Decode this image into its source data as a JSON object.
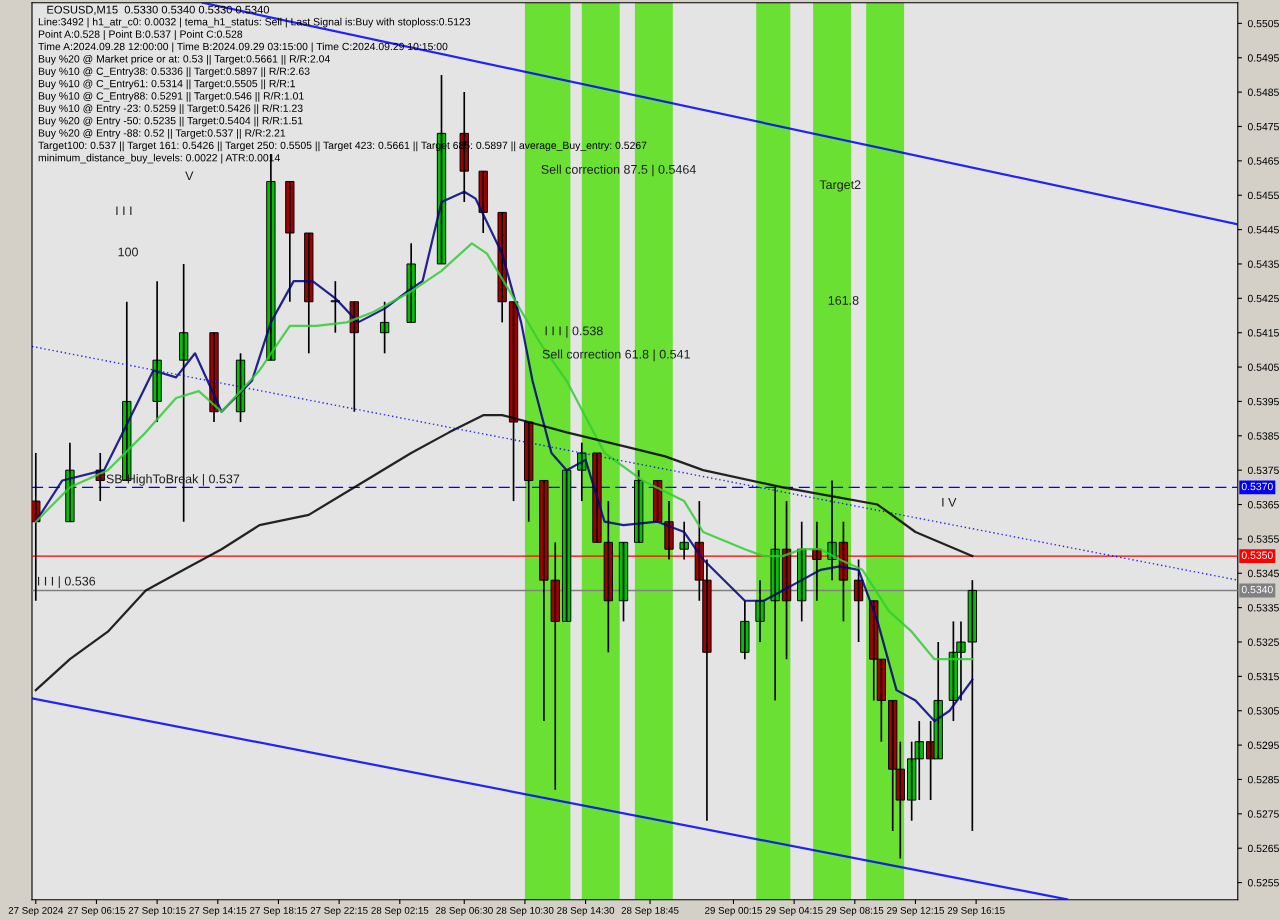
{
  "chart_data": {
    "type": "candlestick",
    "title": "EOSUSD,M15  0.5330 0.5340 0.5330 0.5340",
    "x": [
      "2024-09-27T02:15",
      "2024-09-27T04:30",
      "2024-09-27T06:30",
      "2024-09-27T08:15",
      "2024-09-27T10:15",
      "2024-09-27T12:00",
      "2024-09-27T14:00",
      "2024-09-27T15:45",
      "2024-09-27T17:45",
      "2024-09-27T19:00",
      "2024-09-27T20:15",
      "2024-09-27T22:00",
      "2024-09-27T23:15",
      "2024-09-28T01:15",
      "2024-09-28T03:00",
      "2024-09-28T05:00",
      "2024-09-28T06:30",
      "2024-09-28T07:45",
      "2024-09-28T09:00",
      "2024-09-28T09:45",
      "2024-09-28T10:45",
      "2024-09-28T11:45",
      "2024-09-28T12:30",
      "2024-09-28T13:15",
      "2024-09-28T14:15",
      "2024-09-28T15:15",
      "2024-09-28T16:00",
      "2024-09-28T17:00",
      "2024-09-28T18:00",
      "2024-09-28T19:15",
      "2024-09-28T20:00",
      "2024-09-28T21:00",
      "2024-09-28T22:00",
      "2024-09-28T22:30",
      "2024-09-29T01:00",
      "2024-09-29T02:00",
      "2024-09-29T03:00",
      "2024-09-29T03:45",
      "2024-09-29T04:45",
      "2024-09-29T05:45",
      "2024-09-29T06:45",
      "2024-09-29T07:30",
      "2024-09-29T08:30",
      "2024-09-29T09:30",
      "2024-09-29T10:00",
      "2024-09-29T10:45",
      "2024-09-29T11:15",
      "2024-09-29T12:00",
      "2024-09-29T12:30",
      "2024-09-29T13:15",
      "2024-09-29T13:45",
      "2024-09-29T14:45",
      "2024-09-29T15:15",
      "2024-09-29T16:00"
    ],
    "ohlc": [
      [
        0.5366,
        0.538,
        0.5337,
        0.536
      ],
      [
        0.536,
        0.5383,
        0.536,
        0.5375
      ],
      [
        0.5375,
        0.538,
        0.5366,
        0.5372
      ],
      [
        0.5372,
        0.5424,
        0.5372,
        0.5395
      ],
      [
        0.5395,
        0.543,
        0.5389,
        0.5407
      ],
      [
        0.5407,
        0.5435,
        0.536,
        0.5415
      ],
      [
        0.5415,
        0.5415,
        0.5389,
        0.5392
      ],
      [
        0.5392,
        0.5409,
        0.5389,
        0.5407
      ],
      [
        0.5407,
        0.5467,
        0.5407,
        0.5459
      ],
      [
        0.5459,
        0.5459,
        0.5424,
        0.5444
      ],
      [
        0.5444,
        0.5444,
        0.5409,
        0.5424
      ],
      [
        0.5424,
        0.543,
        0.5415,
        0.5424
      ],
      [
        0.5424,
        0.5424,
        0.5392,
        0.5415
      ],
      [
        0.5415,
        0.5424,
        0.5409,
        0.5418
      ],
      [
        0.5418,
        0.5441,
        0.5418,
        0.5435
      ],
      [
        0.5435,
        0.549,
        0.5435,
        0.5473
      ],
      [
        0.5473,
        0.5485,
        0.5453,
        0.5462
      ],
      [
        0.5462,
        0.5462,
        0.5444,
        0.545
      ],
      [
        0.545,
        0.545,
        0.5418,
        0.5424
      ],
      [
        0.5424,
        0.5424,
        0.5366,
        0.5389
      ],
      [
        0.5389,
        0.5389,
        0.536,
        0.5372
      ],
      [
        0.5372,
        0.5372,
        0.5302,
        0.5343
      ],
      [
        0.5343,
        0.5354,
        0.5282,
        0.5331
      ],
      [
        0.5331,
        0.5375,
        0.5331,
        0.5375
      ],
      [
        0.5375,
        0.5383,
        0.5366,
        0.538
      ],
      [
        0.538,
        0.538,
        0.5354,
        0.5354
      ],
      [
        0.5354,
        0.5366,
        0.5322,
        0.5337
      ],
      [
        0.5337,
        0.5354,
        0.5331,
        0.5354
      ],
      [
        0.5354,
        0.5375,
        0.5354,
        0.5372
      ],
      [
        0.5372,
        0.5372,
        0.536,
        0.536
      ],
      [
        0.536,
        0.5366,
        0.5349,
        0.5352
      ],
      [
        0.5352,
        0.536,
        0.5349,
        0.5354
      ],
      [
        0.5354,
        0.5366,
        0.5337,
        0.5343
      ],
      [
        0.5343,
        0.5349,
        0.5273,
        0.5322
      ],
      [
        0.5322,
        0.5337,
        0.532,
        0.5331
      ],
      [
        0.5331,
        0.5343,
        0.5325,
        0.5337
      ],
      [
        0.5337,
        0.537,
        0.5308,
        0.5352
      ],
      [
        0.5352,
        0.5366,
        0.532,
        0.5337
      ],
      [
        0.5337,
        0.536,
        0.5331,
        0.5352
      ],
      [
        0.5352,
        0.536,
        0.5337,
        0.5349
      ],
      [
        0.5349,
        0.5372,
        0.5343,
        0.5354
      ],
      [
        0.5354,
        0.536,
        0.5331,
        0.5343
      ],
      [
        0.5343,
        0.5349,
        0.5325,
        0.5337
      ],
      [
        0.5337,
        0.5337,
        0.5308,
        0.532
      ],
      [
        0.532,
        0.532,
        0.5296,
        0.5308
      ],
      [
        0.5308,
        0.5308,
        0.527,
        0.5288
      ],
      [
        0.5288,
        0.5296,
        0.5262,
        0.5279
      ],
      [
        0.5279,
        0.5296,
        0.5273,
        0.5291
      ],
      [
        0.5291,
        0.5302,
        0.5279,
        0.5296
      ],
      [
        0.5296,
        0.5302,
        0.5279,
        0.5291
      ],
      [
        0.5291,
        0.5325,
        0.5291,
        0.5308
      ],
      [
        0.5308,
        0.5331,
        0.5302,
        0.5322
      ],
      [
        0.5322,
        0.5331,
        0.5308,
        0.5325
      ],
      [
        0.5325,
        0.5343,
        0.527,
        0.534
      ]
    ],
    "series": [
      {
        "type": "line",
        "color": "#000080",
        "line_style": "solid",
        "x": [
          "2024-09-27T02:15",
          "2024-09-27T04:00",
          "2024-09-27T06:45",
          "2024-09-27T09:00",
          "2024-09-27T10:00",
          "2024-09-27T11:30",
          "2024-09-27T12:45",
          "2024-09-27T14:30",
          "2024-09-27T16:30",
          "2024-09-27T17:45",
          "2024-09-27T19:15",
          "2024-09-27T20:30",
          "2024-09-27T22:00",
          "2024-09-27T23:30",
          "2024-09-28T01:15",
          "2024-09-28T02:45",
          "2024-09-28T03:45",
          "2024-09-28T05:00",
          "2024-09-28T06:30",
          "2024-09-28T07:15",
          "2024-09-28T09:00",
          "2024-09-28T10:15",
          "2024-09-28T11:00",
          "2024-09-28T12:15",
          "2024-09-28T13:15",
          "2024-09-28T14:30",
          "2024-09-28T15:45",
          "2024-09-28T17:00",
          "2024-09-28T19:15",
          "2024-09-28T21:00",
          "2024-09-28T22:15",
          "2024-09-29T01:00",
          "2024-09-29T02:15",
          "2024-09-29T03:30",
          "2024-09-29T04:45",
          "2024-09-29T06:00",
          "2024-09-29T07:15",
          "2024-09-29T08:30",
          "2024-09-29T09:45",
          "2024-09-29T11:00",
          "2024-09-29T12:15",
          "2024-09-29T13:30",
          "2024-09-29T14:30",
          "2024-09-29T16:00"
        ],
        "values": [
          0.536,
          0.5372,
          0.5375,
          0.5395,
          0.5404,
          0.5402,
          0.5409,
          0.5392,
          0.5401,
          0.5418,
          0.543,
          0.543,
          0.5425,
          0.5418,
          0.5422,
          0.5427,
          0.543,
          0.5453,
          0.5456,
          0.5454,
          0.5438,
          0.5418,
          0.5401,
          0.538,
          0.5375,
          0.5378,
          0.536,
          0.5359,
          0.536,
          0.5357,
          0.5349,
          0.5337,
          0.5337,
          0.534,
          0.5343,
          0.5346,
          0.5347,
          0.5346,
          0.5331,
          0.5311,
          0.5308,
          0.5302,
          0.5305,
          0.5314
        ]
      },
      {
        "type": "line",
        "color": "#32cd32",
        "line_style": "solid",
        "x": [
          "2024-09-27T02:15",
          "2024-09-27T04:30",
          "2024-09-27T07:00",
          "2024-09-27T09:30",
          "2024-09-27T11:30",
          "2024-09-27T13:00",
          "2024-09-27T14:30",
          "2024-09-27T17:00",
          "2024-09-27T19:00",
          "2024-09-27T20:45",
          "2024-09-27T22:45",
          "2024-09-28T00:30",
          "2024-09-28T03:00",
          "2024-09-28T05:00",
          "2024-09-28T07:00",
          "2024-09-28T08:00",
          "2024-09-28T09:30",
          "2024-09-28T11:30",
          "2024-09-28T13:15",
          "2024-09-28T15:45",
          "2024-09-28T18:15",
          "2024-09-28T21:00",
          "2024-09-28T22:15",
          "2024-09-29T01:00",
          "2024-09-29T02:15",
          "2024-09-29T03:30",
          "2024-09-29T04:45",
          "2024-09-29T06:00",
          "2024-09-29T07:15",
          "2024-09-29T08:45",
          "2024-09-29T10:30",
          "2024-09-29T12:00",
          "2024-09-29T13:30",
          "2024-09-29T14:45",
          "2024-09-29T16:00"
        ],
        "values": [
          0.536,
          0.537,
          0.5375,
          0.5386,
          0.5396,
          0.5398,
          0.5392,
          0.5404,
          0.5417,
          0.5417,
          0.5418,
          0.5421,
          0.5427,
          0.5433,
          0.5441,
          0.5438,
          0.5427,
          0.5412,
          0.5401,
          0.538,
          0.5372,
          0.5366,
          0.5357,
          0.5352,
          0.535,
          0.535,
          0.5352,
          0.5352,
          0.5349,
          0.5346,
          0.5334,
          0.5328,
          0.532,
          0.532,
          0.532
        ]
      },
      {
        "type": "line",
        "color": "#000000",
        "line_style": "solid",
        "x": [
          "2024-09-27T02:15",
          "2024-09-27T04:30",
          "2024-09-27T07:00",
          "2024-09-27T09:30",
          "2024-09-27T12:00",
          "2024-09-27T14:30",
          "2024-09-27T17:00",
          "2024-09-27T20:15",
          "2024-09-28T00:00",
          "2024-09-28T03:00",
          "2024-09-28T05:30",
          "2024-09-28T07:45",
          "2024-09-28T09:00",
          "2024-09-28T10:45",
          "2024-09-28T13:15",
          "2024-09-28T17:00",
          "2024-09-28T19:45",
          "2024-09-28T22:15",
          "2024-09-29T03:30",
          "2024-09-29T07:15",
          "2024-09-29T09:45",
          "2024-09-29T12:15",
          "2024-09-29T16:00"
        ],
        "values": [
          0.5311,
          0.532,
          0.5328,
          0.534,
          0.5346,
          0.5352,
          0.5359,
          0.5362,
          0.5372,
          0.538,
          0.5386,
          0.5391,
          0.5391,
          0.5389,
          0.5386,
          0.5382,
          0.5379,
          0.5375,
          0.537,
          0.5367,
          0.5365,
          0.5357,
          0.535
        ]
      },
      {
        "type": "line",
        "color": "#0000ff",
        "line_style": "solid",
        "x": [
          "2024-09-27T13:15",
          "2024-09-30T09:30"
        ],
        "values": [
          0.5511,
          0.54465
        ]
      },
      {
        "type": "line",
        "color": "#0000ff",
        "line_style": "solid",
        "x": [
          "2024-09-27T02:00",
          "2024-09-29T22:15"
        ],
        "values": [
          0.53086,
          0.52501
        ]
      },
      {
        "type": "line",
        "color": "#0000ff",
        "line_style": "dotted",
        "x": [
          "2024-09-27T02:00",
          "2024-09-30T09:30"
        ],
        "values": [
          0.5411,
          0.5343
        ]
      }
    ],
    "xlim": [
      "2024-09-27T02:00",
      "2024-09-30T09:30"
    ],
    "ylim": [
      0.525,
      0.5511
    ],
    "xticks": [
      {
        "value": "2024-09-27T02:15",
        "label": "27 Sep 2024"
      },
      {
        "value": "2024-09-27T06:15",
        "label": "27 Sep 06:15"
      },
      {
        "value": "2024-09-27T10:15",
        "label": "27 Sep 10:15"
      },
      {
        "value": "2024-09-27T14:15",
        "label": "27 Sep 14:15"
      },
      {
        "value": "2024-09-27T18:15",
        "label": "27 Sep 18:15"
      },
      {
        "value": "2024-09-27T22:15",
        "label": "27 Sep 22:15"
      },
      {
        "value": "2024-09-28T02:15",
        "label": "28 Sep 02:15"
      },
      {
        "value": "2024-09-28T06:30",
        "label": "28 Sep 06:30"
      },
      {
        "value": "2024-09-28T10:30",
        "label": "28 Sep 10:30"
      },
      {
        "value": "2024-09-28T14:30",
        "label": "28 Sep 14:30"
      },
      {
        "value": "2024-09-28T18:45",
        "label": "28 Sep 18:45"
      },
      {
        "value": "2024-09-29T00:15",
        "label": "29 Sep 00:15"
      },
      {
        "value": "2024-09-29T04:15",
        "label": "29 Sep 04:15"
      },
      {
        "value": "2024-09-29T08:15",
        "label": "29 Sep 08:15"
      },
      {
        "value": "2024-09-29T12:15",
        "label": "29 Sep 12:15"
      },
      {
        "value": "2024-09-29T16:15",
        "label": "29 Sep 16:15"
      }
    ],
    "yticks": [
      0.5255,
      0.5265,
      0.5275,
      0.5285,
      0.5295,
      0.5305,
      0.5315,
      0.5325,
      0.5335,
      0.5345,
      0.5355,
      0.5365,
      0.5375,
      0.5385,
      0.5395,
      0.5405,
      0.5415,
      0.5425,
      0.5435,
      0.5445,
      0.5455,
      0.5465,
      0.5475,
      0.5485,
      0.5495,
      0.5505
    ],
    "ref_lines": [
      {
        "axis": "y",
        "value": 0.537,
        "label": "0.5370",
        "color": "#0000ff",
        "line_style": "dashed"
      },
      {
        "axis": "y",
        "value": 0.535,
        "label": "0.5350",
        "color": "#ff0000",
        "line_style": "solid"
      },
      {
        "axis": "y",
        "value": 0.534,
        "label": "0.5340",
        "color": "#808080",
        "line_style": "solid"
      }
    ],
    "bands": [
      {
        "axis": "x",
        "from": "2024-09-28T10:30",
        "to": "2024-09-28T13:30",
        "color": "#5ce01e"
      },
      {
        "axis": "x",
        "from": "2024-09-28T14:15",
        "to": "2024-09-28T16:45",
        "color": "#5ce01e"
      },
      {
        "axis": "x",
        "from": "2024-09-28T17:45",
        "to": "2024-09-28T20:15",
        "color": "#5ce01e"
      },
      {
        "axis": "x",
        "from": "2024-09-29T01:45",
        "to": "2024-09-29T04:00",
        "color": "#5ce01e"
      },
      {
        "axis": "x",
        "from": "2024-09-29T05:30",
        "to": "2024-09-29T08:00",
        "color": "#5ce01e"
      },
      {
        "axis": "x",
        "from": "2024-09-29T09:00",
        "to": "2024-09-29T11:30",
        "color": "#5ce01e"
      }
    ],
    "annotations": [
      "Line:3492 | h1_atr_c0: 0.0032 | tema_h1_status: Sell | Last Signal is:Buy with stoploss:0.5123",
      "Point A:0.528 | Point B:0.537 | Point C:0.528",
      "Time A:2024.09.28 12:00:00 | Time B:2024.09.29 03:15:00 | Time C:2024.09.29 10:15:00",
      "Buy %20 @ Market price or at: 0.53 || Target:0.5661 || R/R:2.04",
      "Buy %10 @ C_Entry38: 0.5336 || Target:0.5897 || R/R:2.63",
      "Buy %10 @ C_Entry61: 0.5314 || Target:0.5505 || R/R:1",
      "Buy %10 @ C_Entry88: 0.5291 || Target:0.546 || R/R:1.01",
      "Buy %10 @ Entry -23: 0.5259 || Target:0.5426 || R/R:1.23",
      "Buy %20 @ Entry -50: 0.5235 || Target:0.5404 || R/R:1.51",
      "Buy %20 @ Entry -88: 0.52 || Target:0.537 || R/R:2.21",
      "Target100: 0.537 || Target 161: 0.5426 || Target 250: 0.5505 || Target 423: 0.5661 || Target 685: 0.5897 || average_Buy_entry: 0.5267",
      "minimum_distance_buy_levels: 0.0022 | ATR:0.0014",
      "Sell correction 87.5 | 0.5464",
      "Sell correction 61.8 | 0.541",
      "I I I | 0.538",
      "I I I | 0.536",
      "FSB-HighToBreak | 0.537",
      "Target2",
      "161.8",
      "100",
      "I I I",
      "V",
      "I V"
    ]
  }
}
